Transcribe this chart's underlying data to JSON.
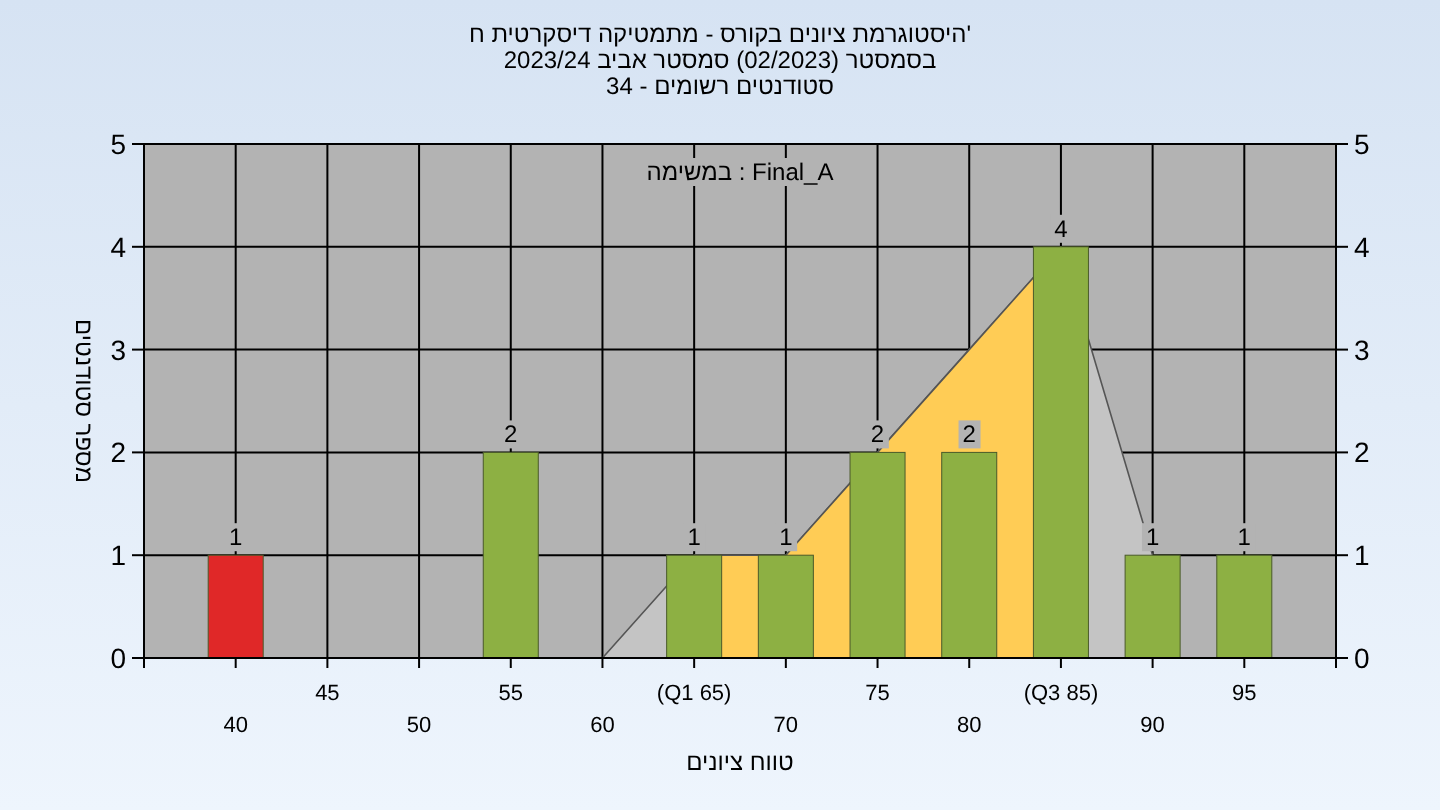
{
  "chart_data": {
    "type": "bar",
    "title": "היסטוגרמת ציונים בקורס - מתמטיקה דיסקרטית ח'\nבסמסטר (02/2023) סמסטר אביב 2023/24\nסטודנטים רשומים - 34",
    "xlabel": "טווח ציונים",
    "ylabel": "מספר סטודנטים",
    "annotations": [
      "במשימה : Final_A"
    ],
    "categories": [
      "40",
      "45",
      "50",
      "55",
      "60",
      "(Q1 65)",
      "70",
      "75",
      "80",
      "(Q3 85)",
      "90",
      "95"
    ],
    "series": [
      {
        "type": "area",
        "color": "#c4c4c4",
        "values": [
          null,
          null,
          null,
          null,
          0,
          1,
          1,
          2,
          3,
          4,
          1,
          null
        ]
      },
      {
        "type": "area",
        "color": "#ffcc55",
        "values": [
          null,
          null,
          null,
          null,
          null,
          1,
          1,
          2,
          3,
          4,
          null,
          null
        ]
      },
      {
        "colors": [
          "#e02828",
          "#8db043",
          "#8db043",
          "#8db043",
          "#8db043",
          "#8db043",
          "#8db043",
          "#8db043",
          "#8db043",
          "#8db043",
          "#8db043",
          "#8db043"
        ],
        "values": [
          1,
          null,
          null,
          2,
          null,
          1,
          1,
          2,
          2,
          4,
          1,
          1
        ],
        "value_labels": [
          "1",
          null,
          null,
          "2",
          null,
          "1",
          "1",
          "2",
          "2",
          "4",
          "1",
          "1"
        ]
      }
    ],
    "ylim": [
      0,
      5
    ],
    "yticks": [
      0,
      1,
      2,
      3,
      4,
      5
    ],
    "y2lim": [
      0,
      5
    ],
    "y2ticks": [
      0,
      1,
      2,
      3,
      4,
      5
    ],
    "grid": true
  }
}
